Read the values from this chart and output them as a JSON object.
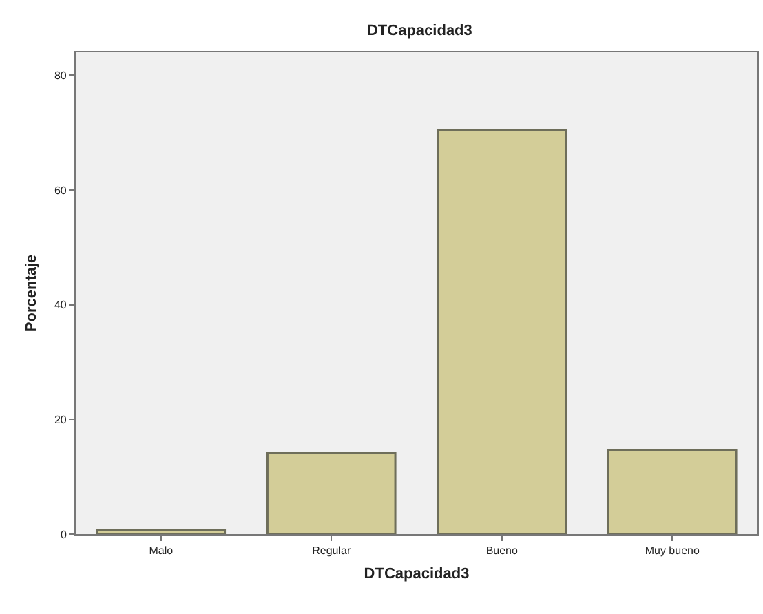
{
  "chart_data": {
    "type": "bar",
    "title": "DTCapacidad3",
    "xlabel": "DTCapacidad3",
    "ylabel": "Porcentaje",
    "categories": [
      "Malo",
      "Regular",
      "Bueno",
      "Muy bueno"
    ],
    "values": [
      0.7,
      14.2,
      70.4,
      14.7
    ],
    "color": "#d3cd98",
    "ylim": [
      0,
      84
    ],
    "yticks": [
      0,
      20,
      40,
      60,
      80
    ],
    "grid": false
  }
}
